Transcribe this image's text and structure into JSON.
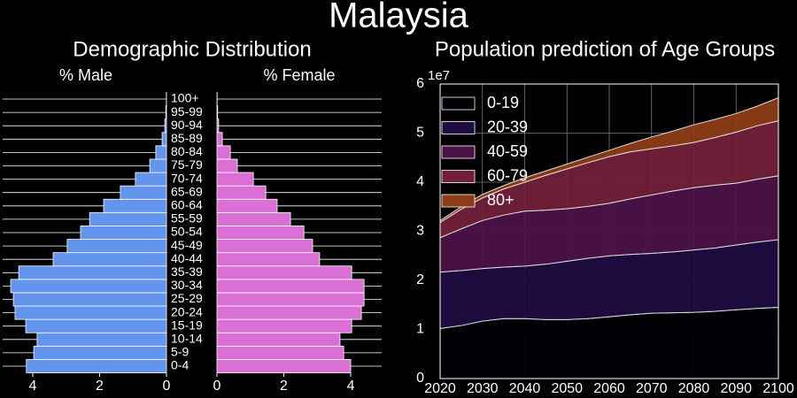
{
  "title": "Malaysia",
  "chart_data": [
    {
      "type": "pyramid",
      "title": "Demographic Distribution",
      "categories": [
        "0-4",
        "5-9",
        "10-14",
        "15-19",
        "20-24",
        "25-29",
        "30-34",
        "35-39",
        "40-44",
        "45-49",
        "50-54",
        "55-59",
        "60-64",
        "65-69",
        "70-74",
        "75-79",
        "80-84",
        "85-89",
        "90-94",
        "95-99",
        "100+"
      ],
      "series": [
        {
          "name": "% Male",
          "color": "#6495ed",
          "values": [
            4.19,
            3.97,
            3.87,
            4.21,
            4.53,
            4.58,
            4.66,
            4.42,
            3.39,
            2.97,
            2.57,
            2.3,
            1.88,
            1.38,
            0.93,
            0.5,
            0.32,
            0.13,
            0.05,
            0.02,
            0.005
          ]
        },
        {
          "name": "% Female",
          "color": "#da70d6",
          "values": [
            4.0,
            3.79,
            3.68,
            4.03,
            4.32,
            4.4,
            4.4,
            4.03,
            3.07,
            2.86,
            2.6,
            2.2,
            1.8,
            1.46,
            1.09,
            0.61,
            0.4,
            0.16,
            0.05,
            0.02,
            0.005
          ]
        }
      ],
      "xlim": [
        0,
        4.9
      ],
      "xticks": [
        0,
        2,
        4
      ],
      "grid": true
    },
    {
      "type": "stackedarea",
      "title": "Population prediction of Age Groups",
      "x": [
        2020,
        2025,
        2030,
        2035,
        2040,
        2045,
        2050,
        2055,
        2060,
        2065,
        2070,
        2075,
        2080,
        2085,
        2090,
        2095,
        2100
      ],
      "series": [
        {
          "name": "0-19",
          "color": "#000004",
          "values": [
            1.02,
            1.08,
            1.17,
            1.22,
            1.22,
            1.2,
            1.2,
            1.22,
            1.26,
            1.3,
            1.33,
            1.34,
            1.35,
            1.37,
            1.4,
            1.43,
            1.45
          ]
        },
        {
          "name": "20-39",
          "color": "#1d0c3f",
          "values": [
            1.15,
            1.12,
            1.07,
            1.05,
            1.07,
            1.13,
            1.19,
            1.23,
            1.24,
            1.23,
            1.22,
            1.24,
            1.27,
            1.29,
            1.32,
            1.35,
            1.38
          ]
        },
        {
          "name": "40-59",
          "color": "#4b1247",
          "values": [
            0.7,
            0.85,
            0.98,
            1.06,
            1.12,
            1.1,
            1.07,
            1.06,
            1.07,
            1.13,
            1.19,
            1.24,
            1.27,
            1.28,
            1.26,
            1.28,
            1.3
          ]
        },
        {
          "name": "60-79",
          "color": "#72203a",
          "values": [
            0.31,
            0.4,
            0.46,
            0.53,
            0.59,
            0.71,
            0.81,
            0.89,
            0.95,
            0.96,
            0.94,
            0.92,
            0.92,
            0.97,
            1.04,
            1.09,
            1.12
          ]
        },
        {
          "name": "80+",
          "color": "#8c3c16",
          "values": [
            0.04,
            0.05,
            0.07,
            0.07,
            0.09,
            0.09,
            0.1,
            0.11,
            0.13,
            0.17,
            0.24,
            0.3,
            0.36,
            0.37,
            0.38,
            0.4,
            0.47
          ]
        }
      ],
      "xlim": [
        2020,
        2100
      ],
      "xticks": [
        2020,
        2030,
        2040,
        2050,
        2060,
        2070,
        2080,
        2090,
        2100
      ],
      "ylim": [
        0,
        6
      ],
      "yticks": [
        0,
        1,
        2,
        3,
        4,
        5,
        6
      ],
      "y_offset_label": "1e7",
      "legend": "upper left",
      "grid": true
    }
  ]
}
